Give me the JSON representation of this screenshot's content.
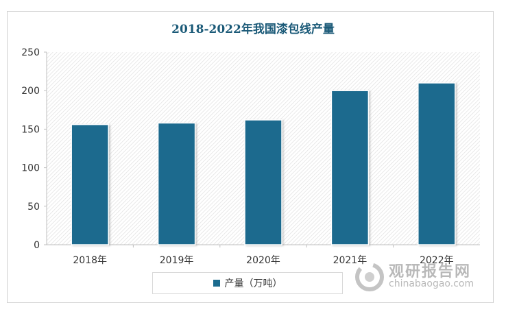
{
  "chart_data": {
    "type": "bar",
    "title": "2018-2022年我国漆包线产量",
    "categories": [
      "2018年",
      "2019年",
      "2020年",
      "2021年",
      "2022年"
    ],
    "series": [
      {
        "name": "产量（万吨）",
        "values": [
          156,
          158,
          162,
          200,
          210
        ]
      }
    ],
    "ylim": [
      0,
      250
    ],
    "yticks": [
      0,
      50,
      100,
      150,
      200,
      250
    ],
    "bar_color": "#1b6b8e",
    "legend": "bottom",
    "grid": false,
    "plot_background": "diagonal-hatch"
  },
  "watermark": {
    "name_cn": "观研报告网",
    "name_en": "chinabaogao.com"
  }
}
